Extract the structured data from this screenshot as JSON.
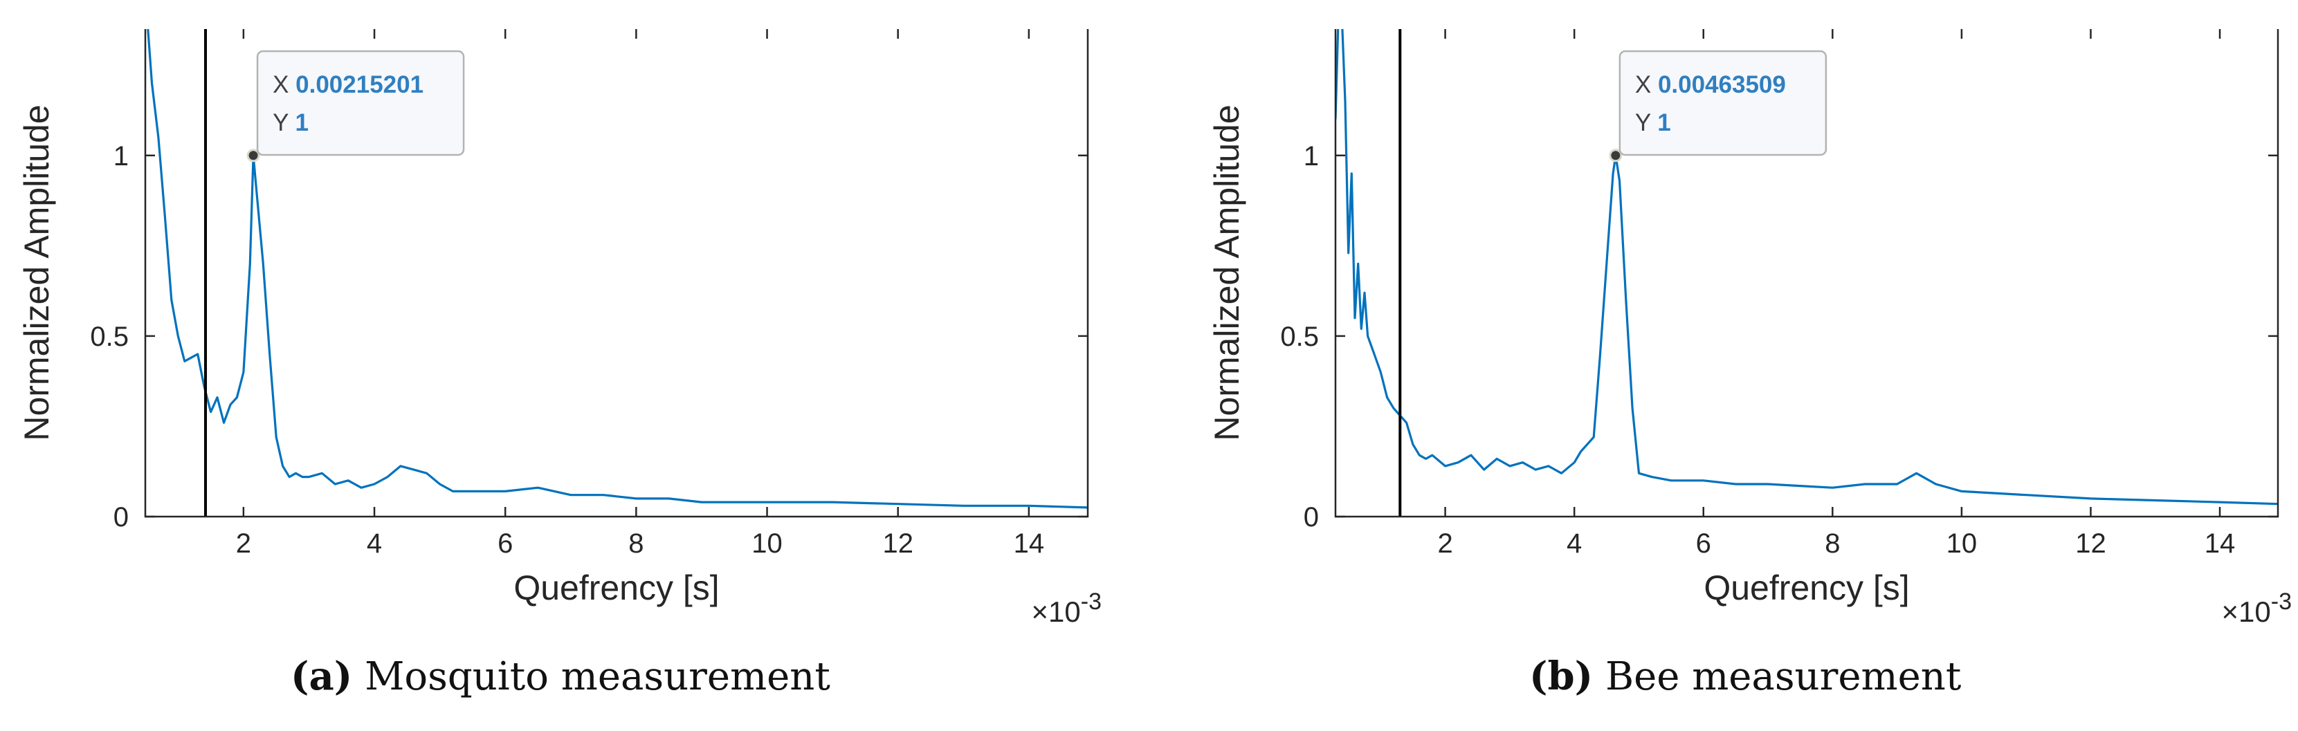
{
  "colors": {
    "line": "#0072BD",
    "axis": "#262626",
    "vline": "#000000",
    "tip_value": "#2f7fc1",
    "tip_label": "#404040",
    "tip_border": "#b3b3b3",
    "tip_bg": "#f7f8fc"
  },
  "chart_data": [
    {
      "type": "line",
      "ylabel": "Normalized Amplitude",
      "xlabel": "Quefrency [s]",
      "x_multiplier_base": "×10",
      "x_multiplier_exp": "-3",
      "xlim": [
        0.5,
        14.9
      ],
      "ylim": [
        0,
        1.35
      ],
      "xticks": [
        2,
        4,
        6,
        8,
        10,
        12,
        14
      ],
      "xtick_labels": [
        "2",
        "4",
        "6",
        "8",
        "10",
        "12",
        "14"
      ],
      "yticks": [
        0,
        0.5,
        1
      ],
      "ytick_labels": [
        "0",
        "0.5",
        "1"
      ],
      "vline_x": 1.42,
      "datatip": {
        "x": 2.15,
        "y": 1.0,
        "x_label": "X",
        "x_value": "0.00215201",
        "y_label": "Y",
        "y_value": "1"
      },
      "series": [
        {
          "x": [
            0.5,
            0.6,
            0.7,
            0.8,
            0.9,
            1.0,
            1.1,
            1.2,
            1.3,
            1.4,
            1.5,
            1.6,
            1.7,
            1.8,
            1.9,
            2.0,
            2.1,
            2.15,
            2.2,
            2.3,
            2.4,
            2.5,
            2.6,
            2.7,
            2.8,
            2.9,
            3.0,
            3.2,
            3.4,
            3.6,
            3.8,
            4.0,
            4.2,
            4.4,
            4.6,
            4.8,
            5.0,
            5.2,
            5.5,
            6.0,
            6.5,
            7.0,
            7.5,
            8.0,
            8.5,
            9.0,
            10.0,
            11.0,
            12.0,
            13.0,
            14.0,
            14.9
          ],
          "y": [
            1.45,
            1.2,
            1.05,
            0.83,
            0.6,
            0.5,
            0.43,
            0.44,
            0.45,
            0.36,
            0.29,
            0.33,
            0.26,
            0.31,
            0.33,
            0.4,
            0.7,
            1.0,
            0.9,
            0.7,
            0.45,
            0.22,
            0.14,
            0.11,
            0.12,
            0.11,
            0.11,
            0.12,
            0.09,
            0.1,
            0.08,
            0.09,
            0.11,
            0.14,
            0.13,
            0.12,
            0.09,
            0.07,
            0.07,
            0.07,
            0.08,
            0.06,
            0.06,
            0.05,
            0.05,
            0.04,
            0.04,
            0.04,
            0.035,
            0.03,
            0.03,
            0.025
          ]
        }
      ]
    },
    {
      "type": "line",
      "ylabel": "Normalized Amplitude",
      "xlabel": "Quefrency [s]",
      "x_multiplier_base": "×10",
      "x_multiplier_exp": "-3",
      "xlim": [
        0.3,
        14.9
      ],
      "ylim": [
        0,
        1.35
      ],
      "xticks": [
        2,
        4,
        6,
        8,
        10,
        12,
        14
      ],
      "xtick_labels": [
        "2",
        "4",
        "6",
        "8",
        "10",
        "12",
        "14"
      ],
      "yticks": [
        0,
        0.5,
        1
      ],
      "ytick_labels": [
        "0",
        "0.5",
        "1"
      ],
      "vline_x": 1.3,
      "datatip": {
        "x": 4.64,
        "y": 1.0,
        "x_label": "X",
        "x_value": "0.00463509",
        "y_label": "Y",
        "y_value": "1"
      },
      "series": [
        {
          "x": [
            0.3,
            0.35,
            0.4,
            0.45,
            0.5,
            0.55,
            0.6,
            0.65,
            0.7,
            0.75,
            0.8,
            0.9,
            1.0,
            1.1,
            1.2,
            1.3,
            1.4,
            1.5,
            1.6,
            1.7,
            1.8,
            2.0,
            2.2,
            2.4,
            2.6,
            2.8,
            3.0,
            3.2,
            3.4,
            3.6,
            3.8,
            4.0,
            4.1,
            4.2,
            4.3,
            4.4,
            4.5,
            4.6,
            4.64,
            4.7,
            4.8,
            4.9,
            5.0,
            5.2,
            5.5,
            6.0,
            6.5,
            7.0,
            7.5,
            8.0,
            8.5,
            9.0,
            9.3,
            9.6,
            10.0,
            11.0,
            12.0,
            13.0,
            14.0,
            14.9
          ],
          "y": [
            1.1,
            1.42,
            1.38,
            1.15,
            0.73,
            0.95,
            0.55,
            0.7,
            0.52,
            0.62,
            0.5,
            0.45,
            0.4,
            0.33,
            0.3,
            0.28,
            0.26,
            0.2,
            0.17,
            0.16,
            0.17,
            0.14,
            0.15,
            0.17,
            0.13,
            0.16,
            0.14,
            0.15,
            0.13,
            0.14,
            0.12,
            0.15,
            0.18,
            0.2,
            0.22,
            0.45,
            0.7,
            0.95,
            1.0,
            0.93,
            0.6,
            0.3,
            0.12,
            0.11,
            0.1,
            0.1,
            0.09,
            0.09,
            0.085,
            0.08,
            0.09,
            0.09,
            0.12,
            0.09,
            0.07,
            0.06,
            0.05,
            0.045,
            0.04,
            0.035
          ]
        }
      ]
    }
  ],
  "captions": [
    {
      "tag": "(a)",
      "text": " Mosquito measurement"
    },
    {
      "tag": "(b)",
      "text": " Bee measurement"
    }
  ]
}
